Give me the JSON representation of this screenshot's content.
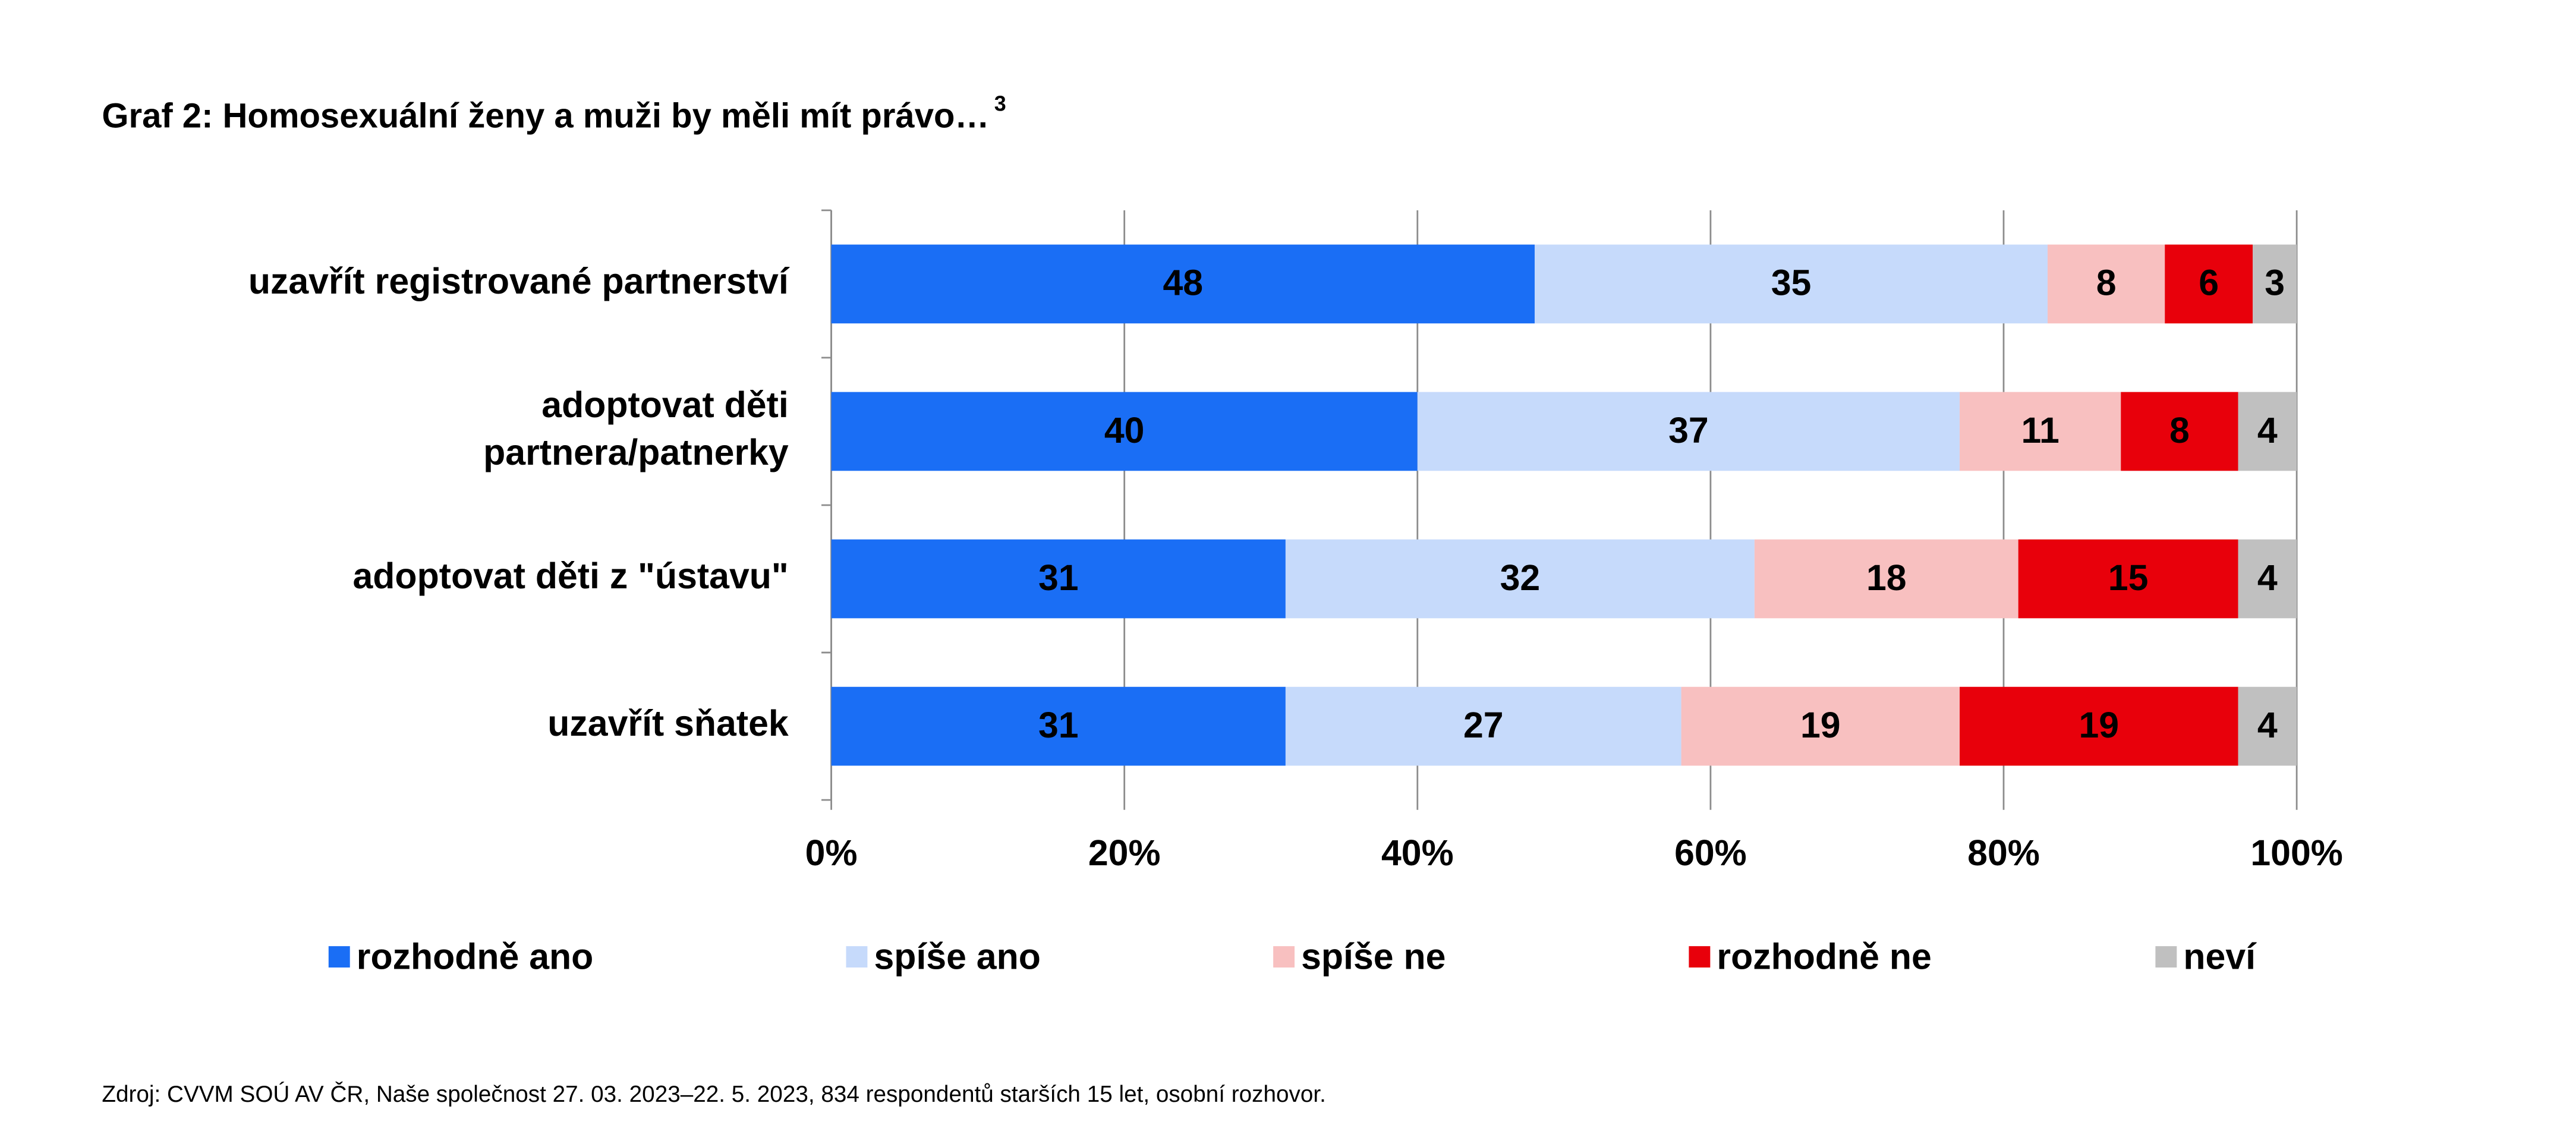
{
  "chart_data": {
    "type": "stacked-bar-horizontal",
    "title": "Graf 2: Homosexuální ženy a muži by měli mít právo…",
    "title_footnote": "3",
    "categories": [
      "uzavřít registrované partnerství",
      "adoptovat děti\npartnera/patnerky",
      "adoptovat děti z \"ústavu\"",
      "uzavřít sňatek"
    ],
    "series": [
      {
        "name": "rozhodně ano",
        "color": "#1a6ef5",
        "values": [
          48,
          40,
          31,
          31
        ]
      },
      {
        "name": "spíše ano",
        "color": "#c6dafb",
        "values": [
          35,
          37,
          32,
          27
        ]
      },
      {
        "name": "spíše ne",
        "color": "#f8c0c0",
        "values": [
          8,
          11,
          18,
          19
        ]
      },
      {
        "name": "rozhodně ne",
        "color": "#e8000b",
        "values": [
          6,
          8,
          15,
          19
        ]
      },
      {
        "name": "neví",
        "color": "#c0c0c0",
        "values": [
          3,
          4,
          4,
          4
        ]
      }
    ],
    "xlim": [
      0,
      100
    ],
    "xticks": [
      {
        "value": 0,
        "label": "0%"
      },
      {
        "value": 20,
        "label": "20%"
      },
      {
        "value": 40,
        "label": "40%"
      },
      {
        "value": 60,
        "label": "60%"
      },
      {
        "value": 80,
        "label": "80%"
      },
      {
        "value": 100,
        "label": "100%"
      }
    ],
    "grid": true,
    "legend": "bottom",
    "source": "Zdroj: CVVM SOÚ AV ČR, Naše společnost 27. 03. 2023–22. 5. 2023, 834 respondentů starších 15 let, osobní rozhovor."
  }
}
